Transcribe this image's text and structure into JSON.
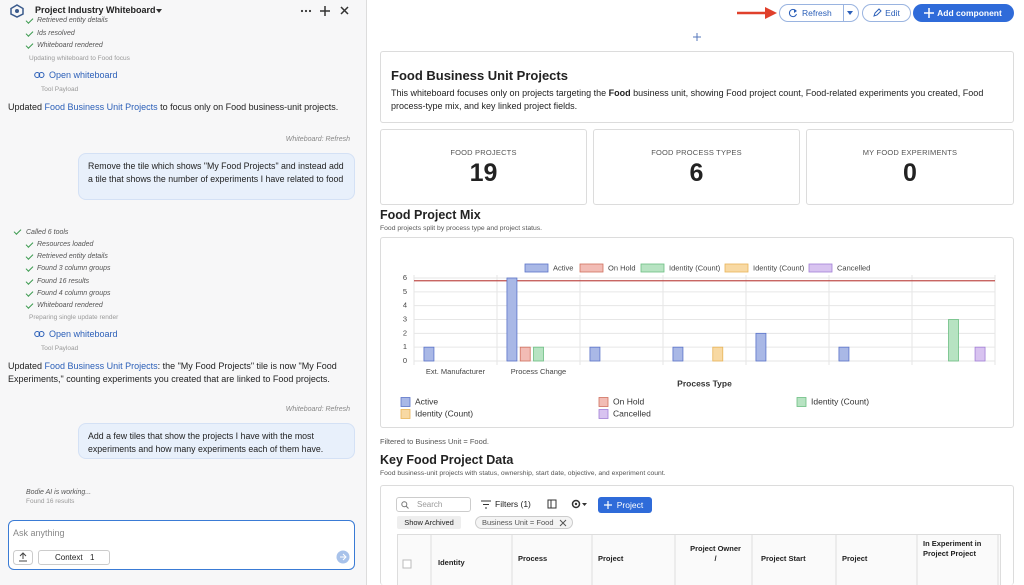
{
  "sidebar": {
    "title": "Project Industry Whiteboard",
    "top_steps": [
      "Retrieved entity details",
      "Ids resolved",
      "Whiteboard rendered"
    ],
    "top_status": "Updating whiteboard to Food focus",
    "tool_payload": "Tool Payload",
    "open_whiteboard": "Open whiteboard",
    "message_1": [
      "Updated ",
      "Food Business Unit Projects",
      " to focus only on Food business-unit projects."
    ],
    "context_tag": "Whiteboard: Refresh",
    "user_1": "Remove the tile which shows \"My Food Projects\" and instead add a tile that shows the number of experiments I have related to food",
    "tools_title": "Called 6 tools",
    "steps": [
      "Resources loaded",
      "Retrieved entity details",
      "Found 3 column groups",
      "Found 16 results",
      "Found 4 column groups",
      "Whiteboard rendered"
    ],
    "status": "Preparing single update render",
    "message_2": [
      "Updated ",
      "Food Business Unit Projects",
      ": the \"My Food Projects\" tile is now \"My Food Experiments,\" counting experiments you created that are linked to Food projects."
    ],
    "user_2": "Add a few tiles that show the projects I have with the most experiments and how many experiments each of them have.",
    "working": "Bodie AI is working...",
    "working_detail": "Found 16 results",
    "input_placeholder": "Ask anything",
    "context_label": "Context",
    "context_count": 1
  },
  "toolbar": {
    "refresh": "Refresh",
    "edit": "Edit",
    "add": "Add component"
  },
  "header": {
    "title": "Food Business Unit Projects",
    "description": [
      "This whiteboard focuses only on projects targeting the ",
      "Food",
      " business unit, showing Food project count, Food-related experiments you created, Food process-type mix, and key linked project fields."
    ]
  },
  "kpis": [
    {
      "label": "FOOD PROJECTS",
      "value": 19
    },
    {
      "label": "FOOD PROCESS TYPES",
      "value": 6
    },
    {
      "label": "MY FOOD EXPERIMENTS",
      "value": 0
    }
  ],
  "chart_data": {
    "type": "bar",
    "title": "Food Project Mix",
    "subtitle": "Food projects split by process type and project status.",
    "x_label": "Process Type",
    "footnote": "Filtered to Business Unit = Food.",
    "categories": [
      "Ext. Manufacturer",
      "Process Change",
      null,
      null,
      null,
      null,
      null
    ],
    "series": [
      {
        "name": "Active",
        "color": "#a9b8e6",
        "border_color": "#5b74c9",
        "values": [
          1,
          6,
          1,
          1,
          2,
          1,
          0
        ]
      },
      {
        "name": "On Hold",
        "color": "#f2bcb5",
        "border_color": "#d0705f",
        "values": [
          0,
          1,
          0,
          0,
          0,
          0,
          0
        ]
      },
      {
        "name": "Identity (Count)",
        "color": "#b7e3c2",
        "border_color": "#6cbf83",
        "values": [
          0,
          1,
          0,
          0,
          0,
          0,
          3
        ]
      },
      {
        "name": "Identity (Count)",
        "color": "#f8d9a3",
        "border_color": "#e8b458",
        "values": [
          0,
          0,
          0,
          1,
          0,
          0,
          0
        ]
      },
      {
        "name": "Cancelled",
        "color": "#d8c3f0",
        "border_color": "#a27fd6",
        "values": [
          0,
          0,
          0,
          0,
          0,
          0,
          1
        ]
      }
    ],
    "reference_line": {
      "value": 5.8,
      "color": "#c0504d"
    },
    "ylim": [
      0,
      6
    ],
    "yticks": [
      0,
      1,
      2,
      3,
      4,
      5,
      6
    ],
    "grid": true
  },
  "table": {
    "title": "Key Food Project Data",
    "subtitle": "Food business-unit projects with status, ownership, start date, objective, and experiment count.",
    "search_placeholder": "Search",
    "filters": "Filters (1)",
    "add_button": "Project",
    "show_archived": "Show Archived",
    "filter_chip": "Business Unit = Food",
    "columns": [
      "Identity",
      "Process",
      "Project",
      "Project Owner /",
      "Project Start",
      "Project",
      "In Experiment in Project Project"
    ]
  }
}
